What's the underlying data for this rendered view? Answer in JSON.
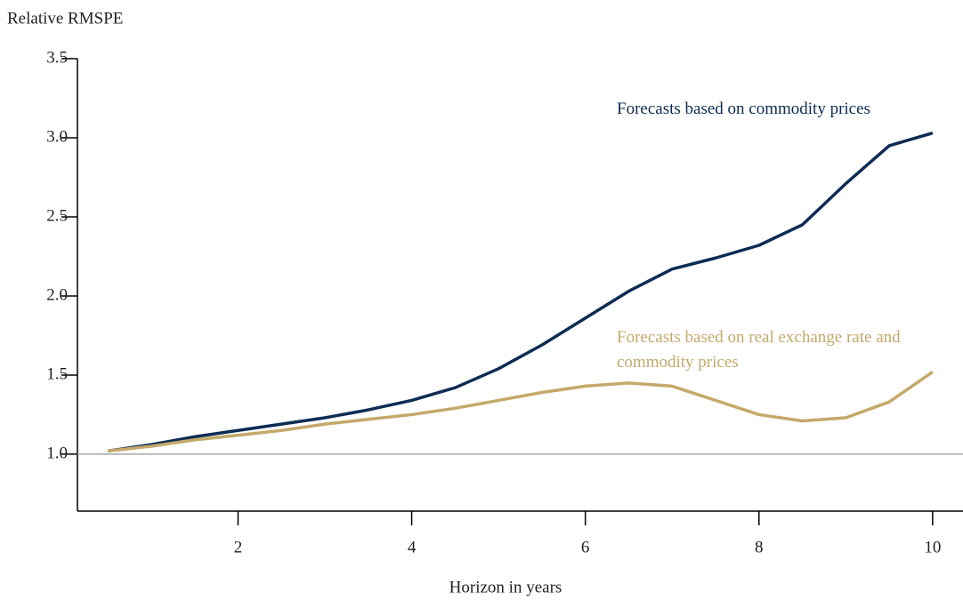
{
  "chart_data": {
    "type": "line",
    "y_label": "Relative RMSPE",
    "x_label": "Horizon in years",
    "x": [
      0.5,
      1,
      1.5,
      2,
      2.5,
      3,
      3.5,
      4,
      4.5,
      5,
      5.5,
      6,
      6.5,
      7,
      7.5,
      8,
      8.5,
      9,
      9.5,
      10
    ],
    "series": [
      {
        "name": "Forecasts based on commodity prices",
        "color": "#0d2c54",
        "values": [
          1.02,
          1.06,
          1.11,
          1.15,
          1.19,
          1.23,
          1.28,
          1.34,
          1.42,
          1.54,
          1.69,
          1.86,
          2.03,
          2.17,
          2.24,
          2.32,
          2.45,
          2.71,
          2.95,
          3.03
        ]
      },
      {
        "name": "Forecasts based on real exchange rate and commodity prices",
        "color": "#c4a96a",
        "values": [
          1.02,
          1.05,
          1.09,
          1.12,
          1.15,
          1.19,
          1.22,
          1.25,
          1.29,
          1.34,
          1.39,
          1.43,
          1.45,
          1.43,
          1.34,
          1.25,
          1.21,
          1.23,
          1.33,
          1.52
        ]
      }
    ],
    "xlim": [
      0.15,
      10.35
    ],
    "ylim": [
      0.64,
      3.5
    ],
    "xticks": [
      2,
      4,
      6,
      8,
      10
    ],
    "yticks": [
      {
        "value": 1,
        "label": "1.0"
      },
      1.5,
      {
        "value": 2,
        "label": "2.0"
      },
      2.5,
      {
        "value": 3,
        "label": "3.0"
      },
      3.5
    ],
    "reference_line": 1,
    "reference_color": "#a6a6a6"
  }
}
